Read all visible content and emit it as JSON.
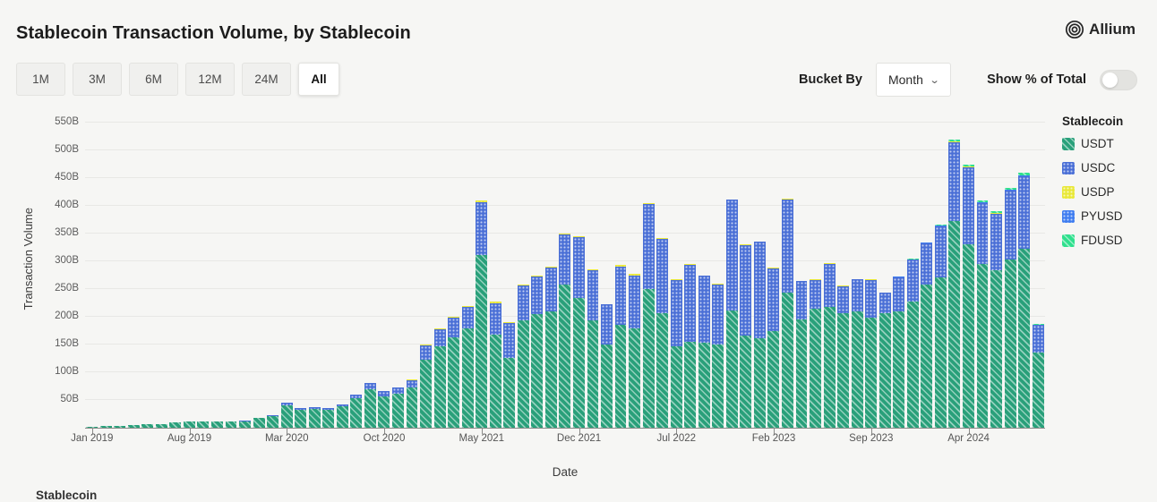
{
  "header": {
    "title": "Stablecoin Transaction Volume, by Stablecoin",
    "brand": "Allium"
  },
  "controls": {
    "range_buttons": [
      "1M",
      "3M",
      "6M",
      "12M",
      "24M",
      "All"
    ],
    "active_range": "All",
    "bucket_by_label": "Bucket By",
    "bucket_value": "Month",
    "show_pct_label": "Show % of Total",
    "show_pct_on": false
  },
  "legend_title": "Stablecoin",
  "footer_partial_text": "Stablecoin",
  "chart_data": {
    "type": "bar",
    "stacked": true,
    "title": "Stablecoin Transaction Volume, by Stablecoin",
    "xlabel": "Date",
    "ylabel": "Transaction Volume",
    "unit": "billions USD",
    "ylim": [
      0,
      550
    ],
    "y_ticks": [
      50,
      100,
      150,
      200,
      250,
      300,
      350,
      400,
      450,
      500,
      550
    ],
    "y_tick_suffix": "B",
    "grid": "horizontal",
    "legend_position": "right",
    "categories": [
      "Jan 2019",
      "Feb 2019",
      "Mar 2019",
      "Apr 2019",
      "May 2019",
      "Jun 2019",
      "Jul 2019",
      "Aug 2019",
      "Sep 2019",
      "Oct 2019",
      "Nov 2019",
      "Dec 2019",
      "Jan 2020",
      "Feb 2020",
      "Mar 2020",
      "Apr 2020",
      "May 2020",
      "Jun 2020",
      "Jul 2020",
      "Aug 2020",
      "Sep 2020",
      "Oct 2020",
      "Nov 2020",
      "Dec 2020",
      "Jan 2021",
      "Feb 2021",
      "Mar 2021",
      "Apr 2021",
      "May 2021",
      "Jun 2021",
      "Jul 2021",
      "Aug 2021",
      "Sep 2021",
      "Oct 2021",
      "Nov 2021",
      "Dec 2021",
      "Jan 2022",
      "Feb 2022",
      "Mar 2022",
      "Apr 2022",
      "May 2022",
      "Jun 2022",
      "Jul 2022",
      "Aug 2022",
      "Sep 2022",
      "Oct 2022",
      "Nov 2022",
      "Dec 2022",
      "Jan 2023",
      "Feb 2023",
      "Mar 2023",
      "Apr 2023",
      "May 2023",
      "Jun 2023",
      "Jul 2023",
      "Aug 2023",
      "Sep 2023",
      "Oct 2023",
      "Nov 2023",
      "Dec 2023",
      "Jan 2024",
      "Feb 2024",
      "Mar 2024",
      "Apr 2024",
      "May 2024",
      "Jun 2024",
      "Jul 2024",
      "Aug 2024",
      "Sep 2024"
    ],
    "x_tick_labels": [
      "Jan 2019",
      "Aug 2019",
      "Mar 2020",
      "Oct 2020",
      "May 2021",
      "Dec 2021",
      "Jul 2022",
      "Feb 2023",
      "Sep 2023",
      "Apr 2024"
    ],
    "x_tick_indices": [
      0,
      7,
      14,
      21,
      28,
      35,
      42,
      49,
      56,
      63
    ],
    "series": [
      {
        "name": "USDT",
        "color": "#29a07a",
        "pattern": "stripes",
        "values": [
          2,
          2.5,
          3.5,
          5,
          6,
          7,
          9,
          10.5,
          10.5,
          11.5,
          11,
          12,
          17,
          20.5,
          41,
          33,
          34,
          33,
          38,
          53,
          70,
          56,
          61,
          73,
          122,
          146,
          163,
          179,
          312,
          168,
          125,
          193,
          205,
          210,
          258,
          234,
          194,
          150,
          186,
          179,
          250,
          207,
          147,
          155,
          153,
          150,
          212,
          166,
          161,
          174,
          244,
          195,
          215,
          218,
          207,
          210,
          199,
          207,
          210,
          228,
          258,
          271,
          373,
          331,
          295,
          284,
          303,
          323,
          136
        ]
      },
      {
        "name": "USDC",
        "color": "#4a6fd6",
        "pattern": "dots",
        "values": [
          0,
          0,
          0,
          0,
          0,
          0,
          0,
          0.5,
          0.5,
          0.5,
          1,
          1,
          1,
          1.5,
          4,
          3,
          3,
          3,
          4,
          7,
          10,
          10,
          11,
          13,
          27,
          32,
          35,
          39,
          94,
          57,
          63,
          63,
          68,
          79,
          90,
          109,
          90,
          72,
          105,
          96,
          153,
          134,
          119,
          139,
          121,
          108,
          199,
          163,
          174,
          113,
          168,
          69,
          51,
          77,
          48,
          57,
          67,
          36,
          61,
          75,
          74,
          92,
          142,
          139,
          110,
          102,
          124,
          130,
          49
        ]
      },
      {
        "name": "USDP",
        "color": "#e9e838",
        "pattern": "dots",
        "values": [
          0,
          0,
          0,
          0,
          0,
          0,
          0,
          0,
          0,
          0,
          0,
          0,
          0,
          0,
          0,
          0,
          0,
          0,
          0,
          0.5,
          0.5,
          0.5,
          0.5,
          0.5,
          1,
          1,
          2,
          2,
          4,
          3,
          2,
          2,
          2,
          2,
          2,
          2,
          1,
          1,
          2,
          2,
          2,
          1,
          1,
          1,
          1,
          1,
          1,
          1,
          1,
          1,
          1,
          1,
          1,
          1,
          1,
          1,
          2,
          0.5,
          0.5,
          0.5,
          0.5,
          0.5,
          0.5,
          0.5,
          0.5,
          0.5,
          0.5,
          0.5,
          0.3
        ]
      },
      {
        "name": "PYUSD",
        "color": "#3f7df0",
        "pattern": "dots",
        "values": [
          0,
          0,
          0,
          0,
          0,
          0,
          0,
          0,
          0,
          0,
          0,
          0,
          0,
          0,
          0,
          0,
          0,
          0,
          0,
          0,
          0,
          0,
          0,
          0,
          0,
          0,
          0,
          0,
          0,
          0,
          0,
          0,
          0,
          0,
          0,
          0,
          0,
          0,
          0,
          0,
          0,
          0,
          0,
          0,
          0,
          0,
          0,
          0,
          0,
          0,
          0,
          0,
          0,
          0,
          0,
          0,
          0.3,
          0.3,
          0.5,
          0.5,
          1,
          1,
          1,
          1,
          1,
          1,
          1,
          1,
          0.5
        ]
      },
      {
        "name": "FDUSD",
        "color": "#2fe08d",
        "pattern": "stripes",
        "values": [
          0,
          0,
          0,
          0,
          0,
          0,
          0,
          0,
          0,
          0,
          0,
          0,
          0,
          0,
          0,
          0,
          0,
          0,
          0,
          0,
          0,
          0,
          0,
          0,
          0,
          0,
          0,
          0,
          0,
          0,
          0,
          0,
          0,
          0,
          0,
          0,
          0,
          0,
          0,
          0,
          0,
          0,
          0,
          0,
          0,
          0,
          0,
          0,
          0,
          0,
          0,
          0,
          0,
          0,
          0,
          0,
          0,
          0,
          0,
          0.5,
          1,
          1.5,
          3,
          3.5,
          3.5,
          3.5,
          3.5,
          4.5,
          1.5
        ]
      }
    ]
  }
}
